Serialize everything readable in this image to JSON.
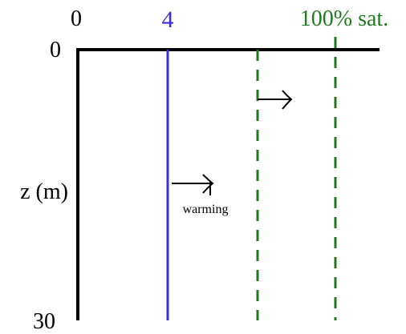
{
  "labels": {
    "top_left_zero": "0",
    "temp_value": "4",
    "saturation": "100% sat.",
    "depth_zero": "0",
    "depth_axis": "z (m)",
    "depth_max": "30",
    "warming": "warming"
  },
  "colors": {
    "axis": "#000000",
    "temperature_line": "#3a2ee0",
    "oxygen_lines": "#1f7a1f",
    "arrows": "#000000"
  },
  "icons": {
    "arrow": "right-arrow-icon"
  }
}
